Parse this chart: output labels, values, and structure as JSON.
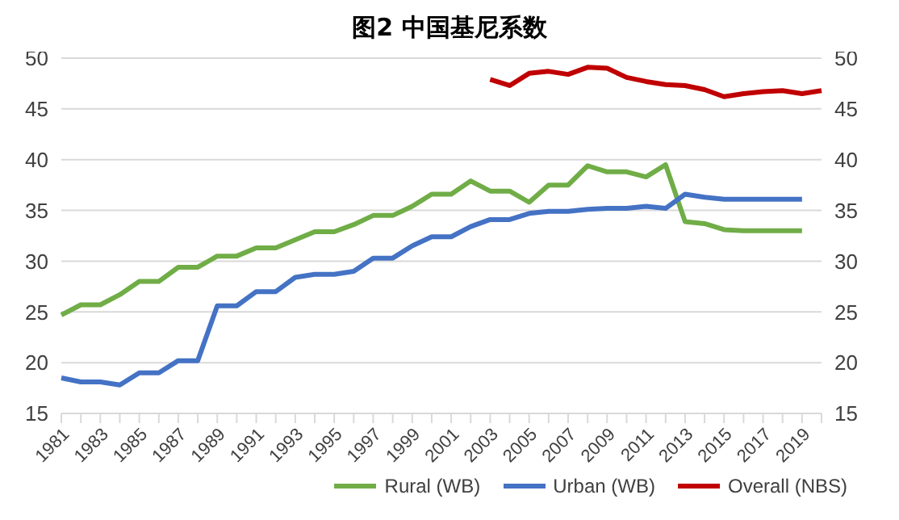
{
  "chart_data": {
    "type": "line",
    "title": "图2  中国基尼系数",
    "categories": [
      "1981",
      null,
      "1983",
      null,
      "1985",
      null,
      "1987",
      null,
      "1989",
      null,
      "1991",
      null,
      "1993",
      null,
      "1995",
      null,
      "1997",
      null,
      "1999",
      null,
      "2001",
      null,
      "2003",
      null,
      "2005",
      null,
      "2007",
      null,
      "2009",
      null,
      "2011",
      null,
      "2013",
      null,
      "2015",
      null,
      "2017",
      null,
      "2019",
      null
    ],
    "series": [
      {
        "name": "Rural (WB)",
        "color": "#70ad47",
        "values": [
          24.7,
          25.7,
          25.7,
          26.7,
          28.0,
          28.0,
          29.4,
          29.4,
          30.5,
          30.5,
          31.3,
          31.3,
          32.1,
          32.9,
          32.9,
          33.6,
          34.5,
          34.5,
          35.4,
          36.6,
          36.6,
          37.9,
          36.9,
          36.9,
          35.8,
          37.5,
          37.5,
          39.4,
          38.8,
          38.8,
          38.3,
          39.5,
          33.9,
          33.7,
          33.1,
          33.0,
          33.0,
          33.0,
          33.0,
          null
        ]
      },
      {
        "name": "Urban (WB)",
        "color": "#4472c4",
        "values": [
          18.5,
          18.1,
          18.1,
          17.8,
          19.0,
          19.0,
          20.2,
          20.2,
          25.6,
          25.6,
          27.0,
          27.0,
          28.4,
          28.7,
          28.7,
          29.0,
          30.3,
          30.3,
          31.5,
          32.4,
          32.4,
          33.4,
          34.1,
          34.1,
          34.7,
          34.9,
          34.9,
          35.1,
          35.2,
          35.2,
          35.4,
          35.2,
          36.6,
          36.3,
          36.1,
          36.1,
          36.1,
          36.1,
          36.1,
          null
        ]
      },
      {
        "name": "Overall (NBS)",
        "color": "#c00000",
        "values": [
          null,
          null,
          null,
          null,
          null,
          null,
          null,
          null,
          null,
          null,
          null,
          null,
          null,
          null,
          null,
          null,
          null,
          null,
          null,
          null,
          null,
          null,
          47.9,
          47.3,
          48.5,
          48.7,
          48.4,
          49.1,
          49.0,
          48.1,
          47.7,
          47.4,
          47.3,
          46.9,
          46.2,
          46.5,
          46.7,
          46.8,
          46.5,
          46.8
        ]
      }
    ],
    "ylim": [
      15,
      50
    ],
    "yticks": [
      15,
      20,
      25,
      30,
      35,
      40,
      45,
      50
    ],
    "y2lim": [
      15,
      50
    ],
    "y2ticks": [
      15,
      20,
      25,
      30,
      35,
      40,
      45,
      50
    ],
    "grid": "y",
    "legend": "bottom right",
    "marker": "none",
    "line_style": "solid"
  }
}
